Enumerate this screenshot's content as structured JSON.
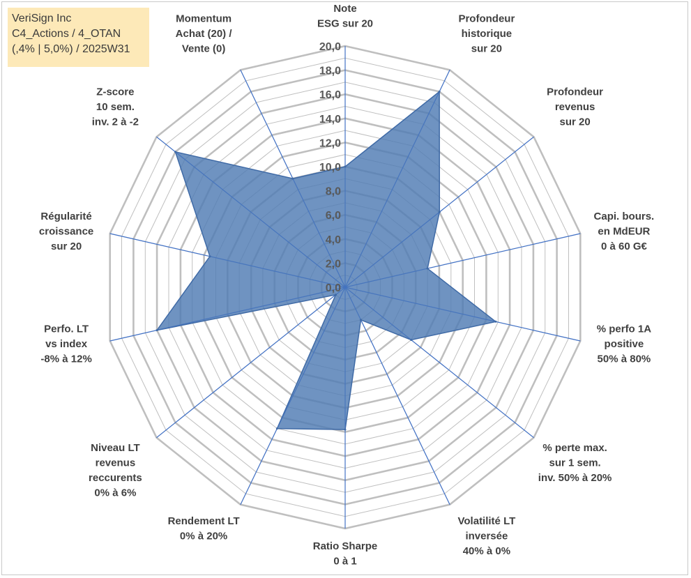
{
  "header": {
    "lines": [
      "VeriSign Inc",
      "C4_Actions / 4_OTAN",
      "(,4% | 5,0%) / 2025W31"
    ]
  },
  "chart_data": {
    "type": "radar",
    "title": "",
    "rmin": 0,
    "rmax": 20,
    "tick_labels": [
      "0,0",
      "2,0",
      "4,0",
      "6,0",
      "8,0",
      "10,0",
      "12,0",
      "14,0",
      "16,0",
      "18,0",
      "20,0"
    ],
    "axes": [
      {
        "label": [
          "Note",
          "ESG sur 20"
        ],
        "value": 10.0
      },
      {
        "label": [
          "Profondeur",
          "historique",
          "sur 20"
        ],
        "value": 18.0
      },
      {
        "label": [
          "Profondeur",
          "revenus",
          "sur 20"
        ],
        "value": 10.0
      },
      {
        "label": [
          "Capi. bours.",
          "en MdEUR",
          "0 à 60 G€"
        ],
        "value": 7.0
      },
      {
        "label": [
          "% perfo 1A",
          "positive",
          "50% à 80%"
        ],
        "value": 12.8
      },
      {
        "label": [
          "% perte max.",
          "sur 1 sem.",
          "inv. 50% à 20%"
        ],
        "value": 7.0
      },
      {
        "label": [
          "Volatilité LT",
          "inversée",
          "40% à 0%"
        ],
        "value": 3.0
      },
      {
        "label": [
          "Ratio Sharpe",
          "0 à 1"
        ],
        "value": 11.8
      },
      {
        "label": [
          "Rendement LT",
          "0% à 20%"
        ],
        "value": 13.0
      },
      {
        "label": [
          "Niveau LT",
          "revenus",
          "reccurents",
          "0% à 6%"
        ],
        "value": 1.0
      },
      {
        "label": [
          "Perfo. LT",
          "vs index",
          "-8% à 12%"
        ],
        "value": 16.0
      },
      {
        "label": [
          "Régularité",
          "croissance",
          "sur 20"
        ],
        "value": 11.5
      },
      {
        "label": [
          "Z-score",
          "10 sem.",
          "inv. 2 à -2"
        ],
        "value": 18.0
      },
      {
        "label": [
          "Momentum",
          "Achat (20) /",
          "Vente (0)"
        ],
        "value": 10.0
      }
    ],
    "colors": {
      "fill": "#4f7bb3",
      "stroke": "#3f6aa6",
      "grid": "#bfbfbf",
      "spoke": "#4472c4"
    }
  }
}
